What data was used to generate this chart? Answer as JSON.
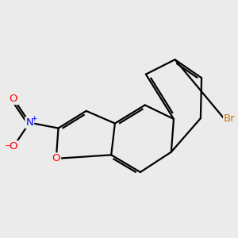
{
  "bg_color": "#ebebeb",
  "bond_color": "#000000",
  "bond_width": 1.6,
  "atom_colors": {
    "O": "#ff0000",
    "N": "#0000ff",
    "Br": "#cc7700",
    "C": "#000000"
  },
  "font_size_atom": 9.5,
  "xlim": [
    -0.3,
    9.0
  ],
  "ylim": [
    0.5,
    8.5
  ]
}
